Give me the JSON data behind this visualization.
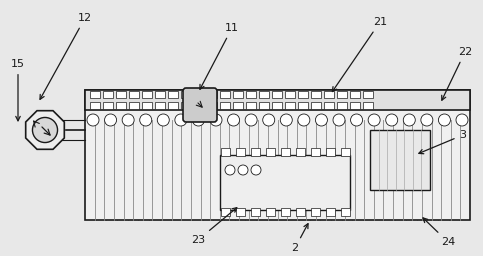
{
  "bg_color": "#e8e8e8",
  "line_color": "#1a1a1a",
  "fig_width": 4.83,
  "fig_height": 2.56,
  "dpi": 100,
  "label_fs": 8.0
}
